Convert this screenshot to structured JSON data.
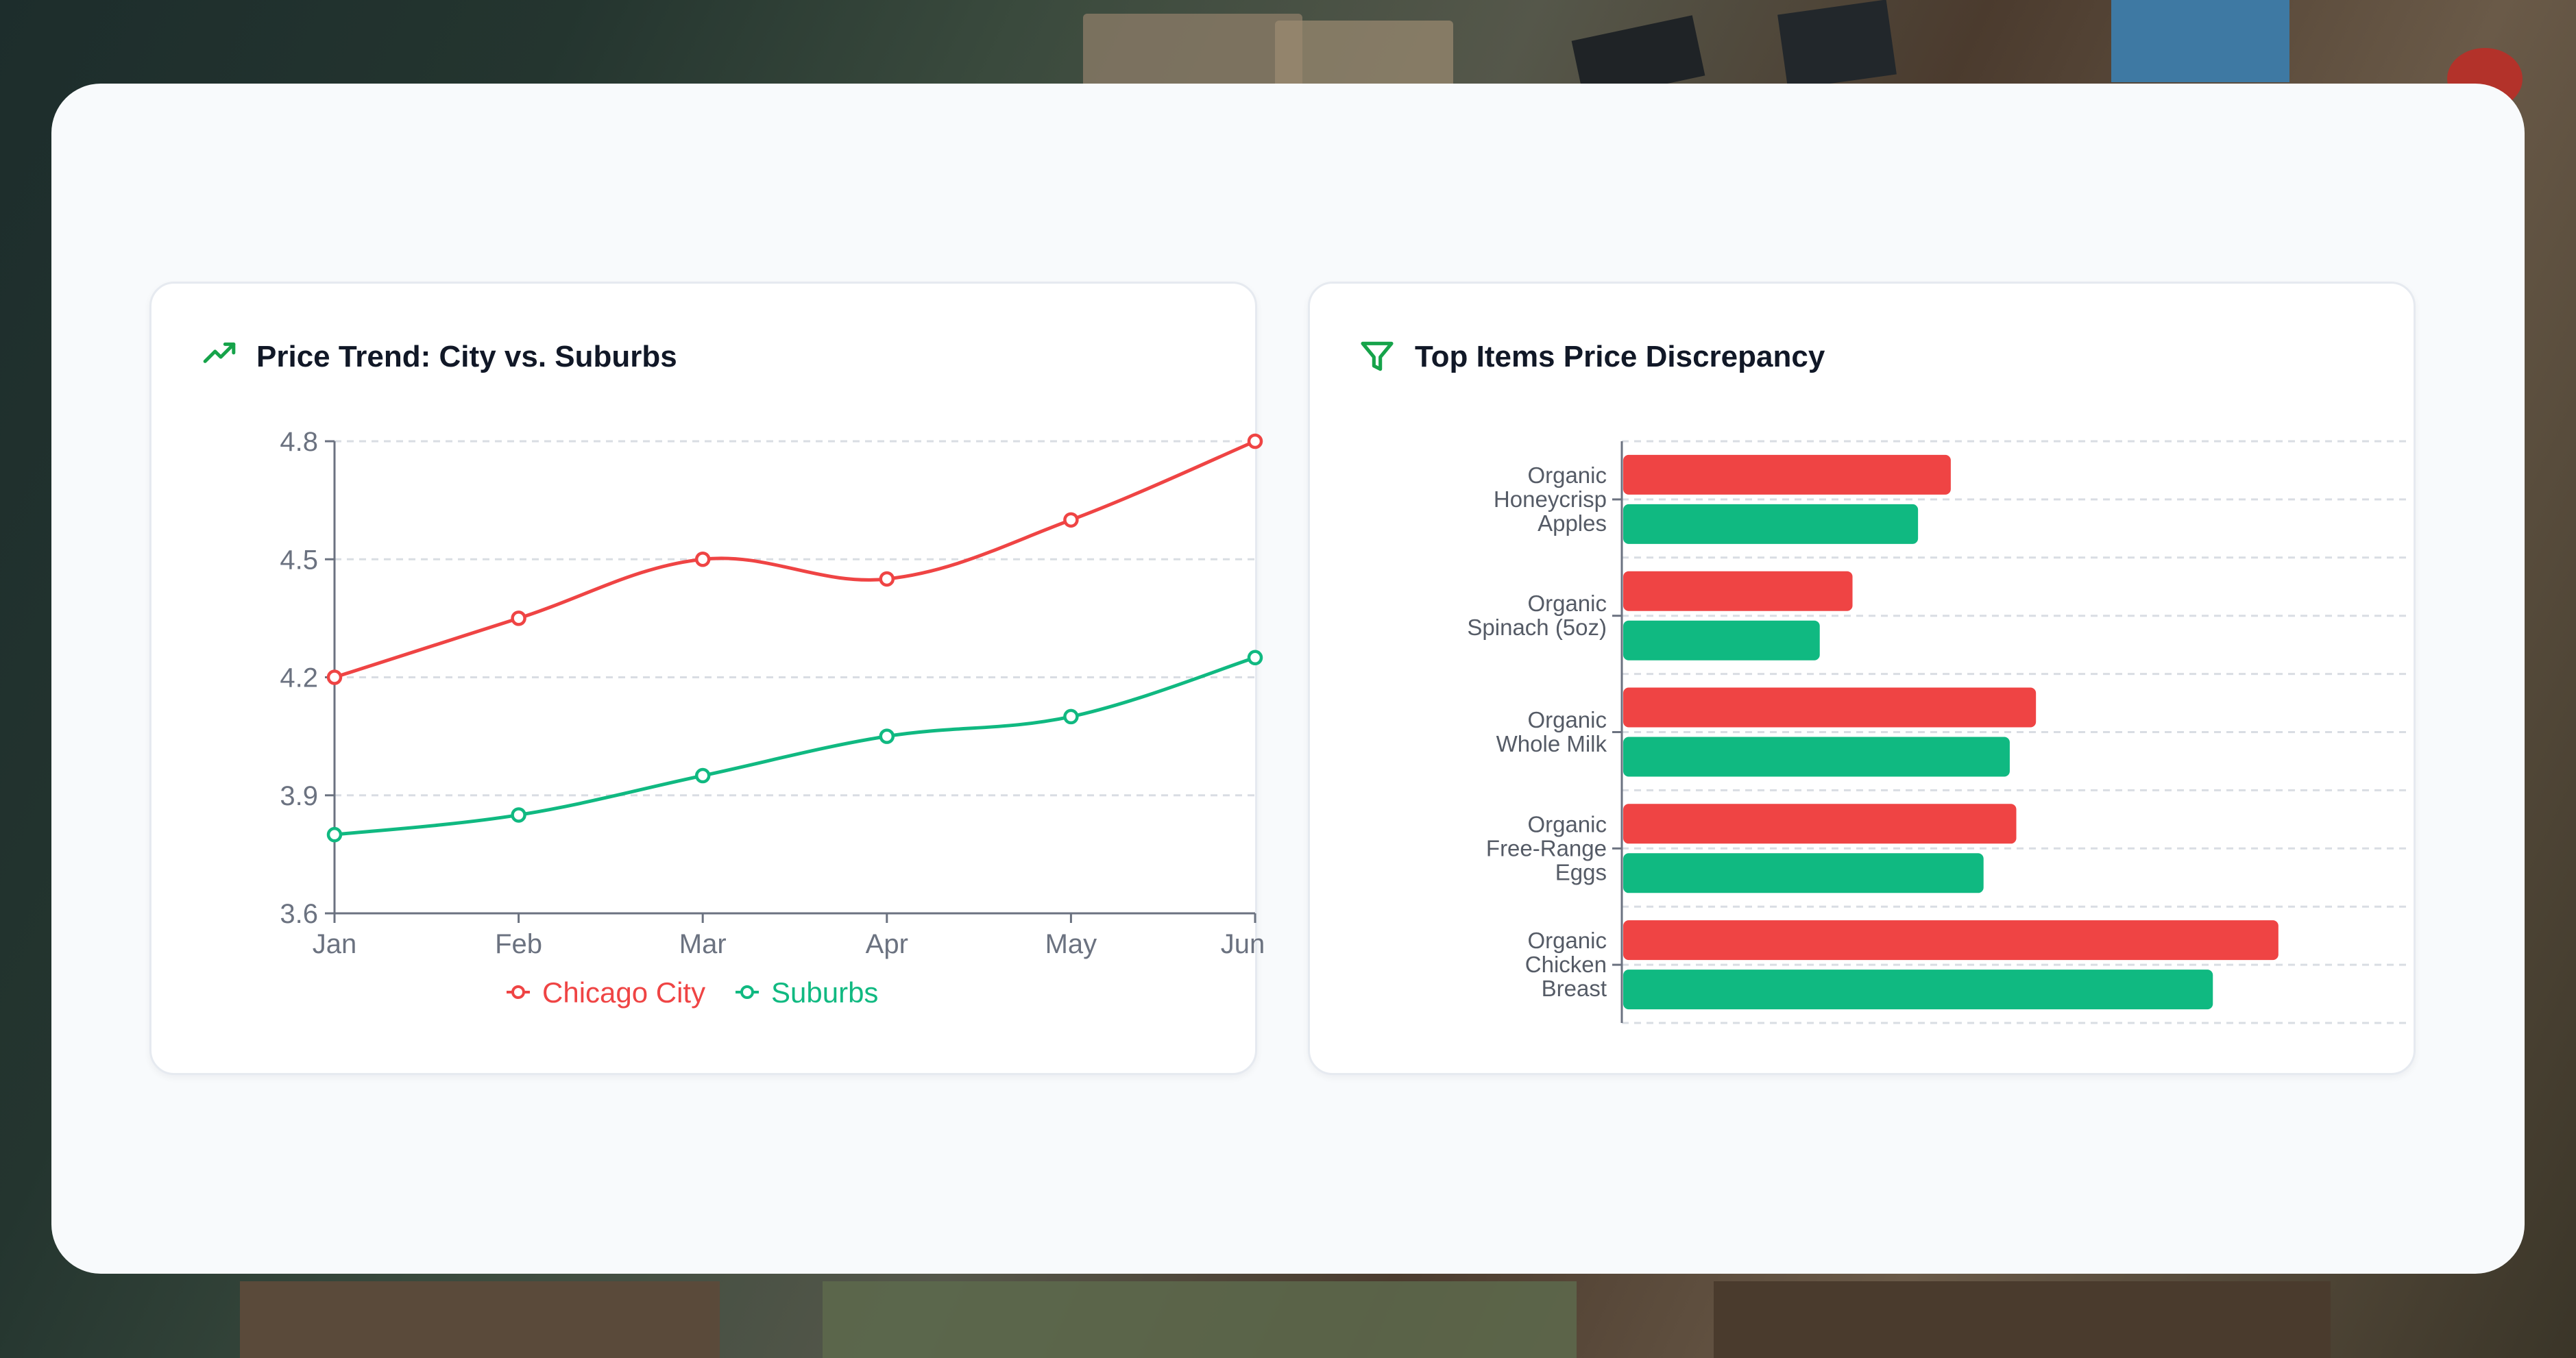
{
  "colors": {
    "city": "#ef4444",
    "suburbs": "#10b981",
    "accent": "#16a34a",
    "grid": "#d9dde3"
  },
  "cards": {
    "trend": {
      "title": "Price Trend: City vs. Suburbs",
      "icon": "trending-up-icon"
    },
    "discrepancy": {
      "title": "Top Items Price Discrepancy",
      "icon": "filter-icon"
    }
  },
  "chart_data": [
    {
      "type": "line",
      "title": "Price Trend: City vs. Suburbs",
      "x": [
        "Jan",
        "Feb",
        "Mar",
        "Apr",
        "May",
        "Jun"
      ],
      "y_ticks": [
        "3.6",
        "3.9",
        "4.2",
        "4.5",
        "4.8"
      ],
      "ylim": [
        3.6,
        4.8
      ],
      "grid": true,
      "legend_position": "bottom",
      "series": [
        {
          "name": "Chicago City",
          "values": [
            4.2,
            4.35,
            4.5,
            4.45,
            4.6,
            4.8
          ]
        },
        {
          "name": "Suburbs",
          "values": [
            3.8,
            3.85,
            3.95,
            4.05,
            4.1,
            4.25
          ]
        }
      ]
    },
    {
      "type": "bar",
      "orientation": "horizontal",
      "title": "Top Items Price Discrepancy",
      "categories": [
        [
          "Organic",
          "Honeycrisp",
          "Apples"
        ],
        [
          "Organic",
          "Spinach (5oz)"
        ],
        [
          "Organic",
          "Whole Milk"
        ],
        [
          "Organic",
          "Free-Range",
          "Eggs"
        ],
        [
          "Organic",
          "Chicken",
          "Breast"
        ]
      ],
      "xlim": [
        0,
        12
      ],
      "grid": true,
      "series": [
        {
          "values": [
            5.0,
            3.5,
            6.3,
            6.0,
            10.0
          ]
        },
        {
          "values": [
            4.5,
            3.0,
            5.9,
            5.5,
            9.0
          ]
        }
      ]
    }
  ]
}
